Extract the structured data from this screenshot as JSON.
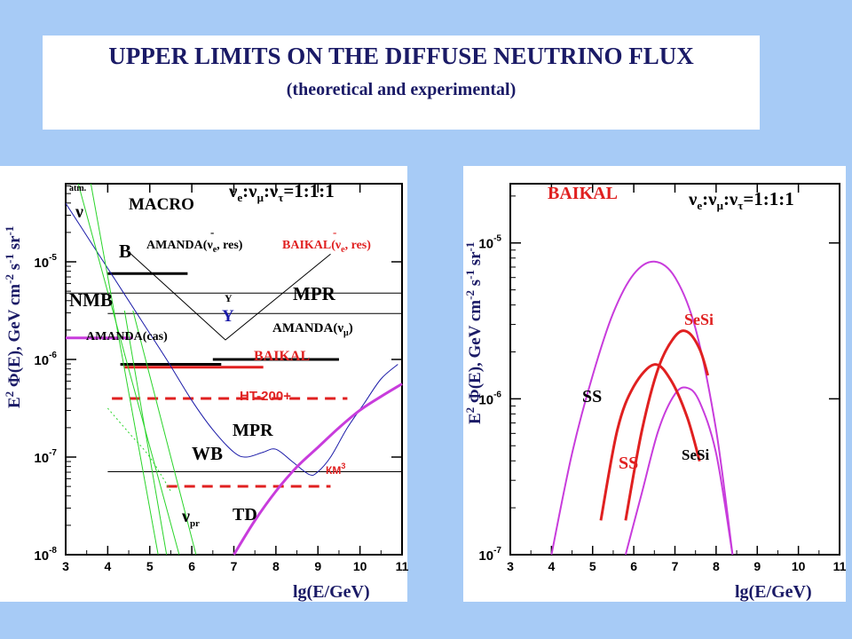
{
  "header": {
    "title": "UPPER LIMITS ON THE DIFFUSE NEUTRINO FLUX",
    "subtitle": "(theoretical and experimental)"
  },
  "colors": {
    "page_bg": "#a7cbf6",
    "black": "#000000",
    "blue": "#1a1aa8",
    "red": "#e02020",
    "magenta": "#c83cdc",
    "green": "#2ad42a"
  },
  "chart_data": [
    {
      "type": "line",
      "title": "",
      "xlabel": "lg(E/GeV)",
      "ylabel": "E² Φ(E), GeV cm⁻² s⁻¹ sr⁻¹",
      "xlim": [
        3,
        11
      ],
      "ylim_log10": [
        -8,
        -4.2
      ],
      "x_ticks": [
        3,
        4,
        5,
        6,
        7,
        8,
        9,
        10,
        11
      ],
      "y_ticks": [
        {
          "exp": -5,
          "label_base": "10",
          "label_exp": "-5"
        },
        {
          "exp": -6,
          "label_base": "10",
          "label_exp": "-6"
        },
        {
          "exp": -7,
          "label_base": "10",
          "label_exp": "-7"
        },
        {
          "exp": -8,
          "label_base": "10",
          "label_exp": "-8"
        }
      ],
      "flavor_label": {
        "prefix": "ν",
        "sub1": "e",
        "sep": ":ν",
        "sub2": "μ",
        "sep2": ":ν",
        "sub3": "τ",
        "ratio": "=1:1:1"
      },
      "series": [
        {
          "name": "MACRO",
          "kind": "hline",
          "color": "#000000",
          "width": 3,
          "x": [
            4.0,
            5.9
          ],
          "y_log10": -5.12
        },
        {
          "name": "B",
          "kind": "hline",
          "color": "#000000",
          "width": 1,
          "x": [
            3.0,
            11.0
          ],
          "y_log10": -5.32
        },
        {
          "name": "MPR",
          "kind": "hline",
          "color": "#000000",
          "width": 1,
          "x": [
            4.0,
            11.0
          ],
          "y_log10": -5.53
        },
        {
          "name": "NMB",
          "kind": "hline",
          "color": "#c83cdc",
          "width": 3,
          "x": [
            3.0,
            4.6
          ],
          "y_log10": -5.78
        },
        {
          "name": "AMANDA(ν_μ)",
          "kind": "hline",
          "color": "#000000",
          "width": 3,
          "x": [
            6.5,
            9.5
          ],
          "y_log10": -6.0
        },
        {
          "name": "AMANDA(cas)",
          "kind": "hline",
          "color": "#000000",
          "width": 3,
          "x": [
            4.3,
            6.7
          ],
          "y_log10": -6.05
        },
        {
          "name": "BAIKAL",
          "kind": "hline",
          "color": "#e02020",
          "width": 3,
          "x": [
            4.4,
            7.7
          ],
          "y_log10": -6.08
        },
        {
          "name": "HT-200+",
          "kind": "hline_dashed",
          "color": "#e02020",
          "width": 3,
          "x": [
            4.1,
            9.7
          ],
          "y_log10": -6.4
        },
        {
          "name": "WB",
          "kind": "hline",
          "color": "#000000",
          "width": 1,
          "x": [
            4.0,
            11.0
          ],
          "y_log10": -7.15
        },
        {
          "name": "КМ³",
          "kind": "hline_dashed",
          "color": "#e02020",
          "width": 3,
          "x": [
            5.4,
            9.3
          ],
          "y_log10": -7.3
        },
        {
          "name": "AMANDA(ν̄e, res) / BAIKAL(ν̄e, res)",
          "color": "#000000",
          "width": 1,
          "x": [
            4.5,
            6.8,
            9.3
          ],
          "y_log10": [
            -4.9,
            -5.8,
            -4.92
          ]
        },
        {
          "name": "MPR (blue)",
          "color": "#1a1aa8",
          "width": 1,
          "x": [
            3.0,
            3.6,
            4.2,
            4.8,
            5.4,
            6.0,
            6.5,
            7.0,
            7.3,
            7.7,
            8.0,
            8.4,
            8.8,
            9.0,
            9.3,
            9.7,
            10.1,
            10.5,
            10.9
          ],
          "y_log10": [
            -4.4,
            -4.8,
            -5.2,
            -5.6,
            -6.0,
            -6.42,
            -6.72,
            -6.95,
            -7.0,
            -6.95,
            -6.92,
            -7.05,
            -7.18,
            -7.15,
            -7.0,
            -6.7,
            -6.45,
            -6.2,
            -6.05
          ]
        },
        {
          "name": "TD",
          "color": "#c83cdc",
          "width": 3,
          "x": [
            7.0,
            7.5,
            8.0,
            8.5,
            9.0,
            9.5,
            10.0,
            10.5,
            11.0
          ],
          "y_log10": [
            -8.0,
            -7.65,
            -7.35,
            -7.1,
            -6.9,
            -6.7,
            -6.52,
            -6.38,
            -6.25
          ]
        },
        {
          "name": "ν atm (upper)",
          "color": "#2ad42a",
          "width": 1,
          "x": [
            3.3,
            5.7
          ],
          "y_log10": [
            -4.2,
            -8.0
          ]
        },
        {
          "name": "ν atm (lower)",
          "color": "#2ad42a",
          "width": 1,
          "x": [
            3.6,
            5.2
          ],
          "y_log10": [
            -4.2,
            -8.0
          ]
        },
        {
          "name": "ν_pr (upper)",
          "color": "#2ad42a",
          "width": 1,
          "x": [
            4.6,
            6.1
          ],
          "y_log10": [
            -5.5,
            -8.0
          ]
        },
        {
          "name": "ν_pr (lower)",
          "color": "#2ad42a",
          "width": 1,
          "x": [
            4.4,
            5.4
          ],
          "y_log10": [
            -5.5,
            -8.0
          ]
        },
        {
          "name": "ν_pr (dotted)",
          "color": "#2ad42a",
          "width": 1,
          "dotted": true,
          "x": [
            4.0,
            4.5,
            5.0,
            5.5
          ],
          "y_log10": [
            -6.5,
            -6.75,
            -7.0,
            -7.35
          ]
        }
      ],
      "labels": {
        "atm": "atm.",
        "nu": "ν",
        "macro": "MACRO",
        "b": "B",
        "amanda_res_prefix": "AMANDA(",
        "amanda_res_nu": "ν",
        "amanda_res_sub": "e",
        "amanda_res_suffix": ", res)",
        "baikal_res_prefix": "BAIKAL(",
        "baikal_res_nu": "ν",
        "baikal_res_sub": "e",
        "baikal_res_suffix": ", res)",
        "bar": "-",
        "nmb": "NMB",
        "y_small": "Y",
        "y_blue": "Y",
        "mpr_top": "MPR",
        "amanda_cas": "AMANDA(cas)",
        "amanda_numu_prefix": "AMANDA(ν",
        "amanda_numu_sub": "μ",
        "amanda_numu_suffix": ")",
        "baikal": "BAIKAL",
        "ht200": "HT-200+",
        "mpr_bottom": "MPR",
        "wb": "WB",
        "km3_base": "КМ",
        "km3_exp": "3",
        "nu_pr": "ν",
        "nu_pr_sub": "pr",
        "td": "TD"
      }
    },
    {
      "type": "line",
      "title": "",
      "xlabel": "lg(E/GeV)",
      "ylabel": "E² Φ(E), GeV cm⁻² s⁻¹ sr⁻¹",
      "xlim": [
        3,
        11
      ],
      "ylim_log10": [
        -7.0,
        -4.62
      ],
      "x_ticks": [
        3,
        4,
        5,
        6,
        7,
        8,
        9,
        10,
        11
      ],
      "y_ticks": [
        {
          "exp": -5,
          "label_base": "10",
          "label_exp": "-5"
        },
        {
          "exp": -6,
          "label_base": "10",
          "label_exp": "-6"
        },
        {
          "exp": -7,
          "label_base": "10",
          "label_exp": "-7"
        }
      ],
      "series": [
        {
          "name": "SS",
          "color": "#c83cdc",
          "width": 2,
          "x": [
            4.0,
            4.5,
            5.0,
            5.5,
            6.0,
            6.5,
            7.0,
            7.5,
            8.0,
            8.4
          ],
          "y_log10": [
            -7.0,
            -6.35,
            -5.85,
            -5.45,
            -5.2,
            -5.12,
            -5.22,
            -5.55,
            -6.2,
            -7.0
          ]
        },
        {
          "name": "SeSi",
          "color": "#c83cdc",
          "width": 2,
          "x": [
            5.8,
            6.2,
            6.6,
            7.0,
            7.3,
            7.6,
            8.0,
            8.4
          ],
          "y_log10": [
            -7.0,
            -6.6,
            -6.2,
            -5.97,
            -5.93,
            -6.02,
            -6.35,
            -7.0
          ]
        },
        {
          "name": "SS (BAIKAL)",
          "color": "#e02020",
          "width": 3,
          "x": [
            5.2,
            5.6,
            6.0,
            6.5,
            6.9,
            7.3,
            7.6
          ],
          "y_log10": [
            -6.78,
            -6.2,
            -5.92,
            -5.78,
            -5.88,
            -6.12,
            -6.4
          ]
        },
        {
          "name": "SeSi (BAIKAL)",
          "color": "#e02020",
          "width": 3,
          "x": [
            5.8,
            6.2,
            6.6,
            7.0,
            7.3,
            7.6,
            7.8
          ],
          "y_log10": [
            -6.78,
            -6.2,
            -5.8,
            -5.6,
            -5.57,
            -5.68,
            -5.85
          ]
        }
      ],
      "labels": {
        "baikal": "BAIKAL",
        "ss_magenta": "SS",
        "sesi_red": "SeSi",
        "ss_red": "SS",
        "sesi_black": "SeSi"
      }
    }
  ]
}
